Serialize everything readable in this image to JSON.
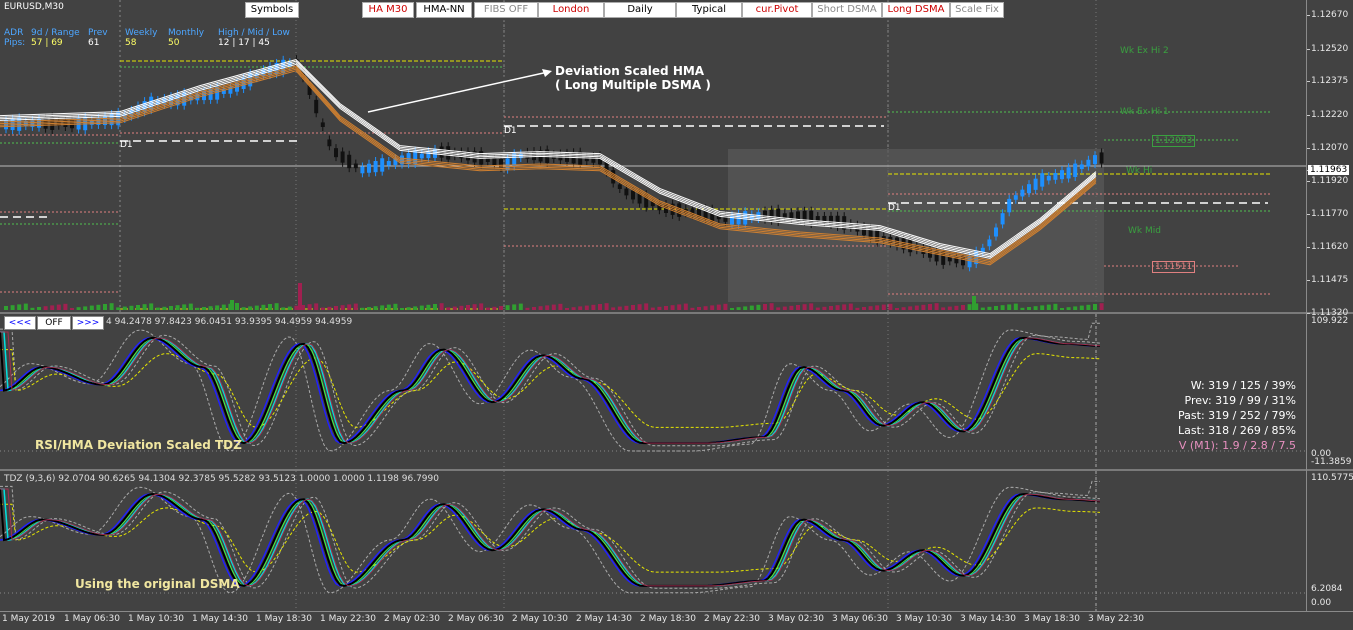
{
  "symbol": "EURUSD,M30",
  "toolbar": [
    {
      "label": "Symbols",
      "color": "#000000"
    },
    {
      "label": "HA M30",
      "color": "#cc0000"
    },
    {
      "label": "HMA-NN",
      "color": "#000000"
    },
    {
      "label": "FIBS OFF",
      "color": "#888888"
    },
    {
      "label": "London",
      "color": "#cc0000"
    },
    {
      "label": "Daily",
      "color": "#000000"
    },
    {
      "label": "Typical",
      "color": "#000000"
    },
    {
      "label": "cur.Pivot",
      "color": "#cc0000"
    },
    {
      "label": "Short DSMA",
      "color": "#888888"
    },
    {
      "label": "Long DSMA",
      "color": "#cc0000"
    },
    {
      "label": "Scale Fix",
      "color": "#888888"
    }
  ],
  "stats": {
    "adr_label": "ADR",
    "pips_label": "Pips:",
    "range_label": "9d / Range",
    "range_value": "57 | 69",
    "prev_label": "Prev",
    "prev_value": "61",
    "weekly_label": "Weekly",
    "weekly_value": "58",
    "monthly_label": "Monthly",
    "monthly_value": "50",
    "hml_label": "High / Mid / Low",
    "hml_value": "12  |  17  |  45"
  },
  "annotation": {
    "line1": "Deviation Scaled HMA",
    "line2": "( Long Multiple  DSMA )"
  },
  "levels": {
    "wk_ex_hi_2": "Wk Ex Hi 2",
    "wk_ex_hi_1": "Wk Ex Hi 1",
    "wk_hi": "Wk Hi",
    "wk_mid": "Wk Mid",
    "d1_a": "D1",
    "d1_b": "D1",
    "d1_c": "D1"
  },
  "price_boxes": {
    "upper": "1.12083",
    "lower": "1.11511"
  },
  "y_axis_main": [
    "1.12670",
    "1.12520",
    "1.12375",
    "1.12220",
    "1.12070",
    "1.11963",
    "1.11920",
    "1.11770",
    "1.11620",
    "1.11475",
    "1.11320"
  ],
  "current_price": "1.11963",
  "sub1": {
    "nav_prev": "<<<",
    "nav_off": "OFF",
    "nav_next": ">>>",
    "values": "4 94.2478 97.8423 96.0451 93.9395 94.4959 94.4959",
    "title": "RSI/HMA Deviation Scaled TDZ",
    "y_top": "109.922",
    "y_mid": "0.00",
    "y_bot": "-11.3859",
    "stat_w": "W: 319 / 125 / 39%",
    "stat_prev": "Prev: 319 / 99 / 31%",
    "stat_past": "Past: 319 / 252 / 79%",
    "stat_last": "Last: 318 / 269 / 85%",
    "stat_v": "V (M1): 1.9 / 2.8 / 7.5"
  },
  "sub2": {
    "values": "TDZ (9,3,6) 92.0704 90.6265 94.1304 92.3785 95.5282 93.5123 1.0000 1.0000 1.1198 96.7990",
    "title": "Using the original DSMA",
    "y_top": "110.5775",
    "y_bot1": "6.2084",
    "y_bot2": "0.00"
  },
  "x_axis": [
    "1 May 2019",
    "1 May 06:30",
    "1 May 10:30",
    "1 May 14:30",
    "1 May 18:30",
    "1 May 22:30",
    "2 May 02:30",
    "2 May 06:30",
    "2 May 10:30",
    "2 May 14:30",
    "2 May 18:30",
    "2 May 22:30",
    "3 May 02:30",
    "3 May 06:30",
    "3 May 10:30",
    "3 May 14:30",
    "3 May 18:30",
    "3 May 22:30"
  ],
  "colors": {
    "bull": "#1e90ff",
    "bear": "#111111",
    "yellow_dash": "#e6e600",
    "pink_dash": "#e08080",
    "green_dash": "#50c050",
    "hma_white": "#ffffff",
    "hma_orange": "#d08030"
  }
}
